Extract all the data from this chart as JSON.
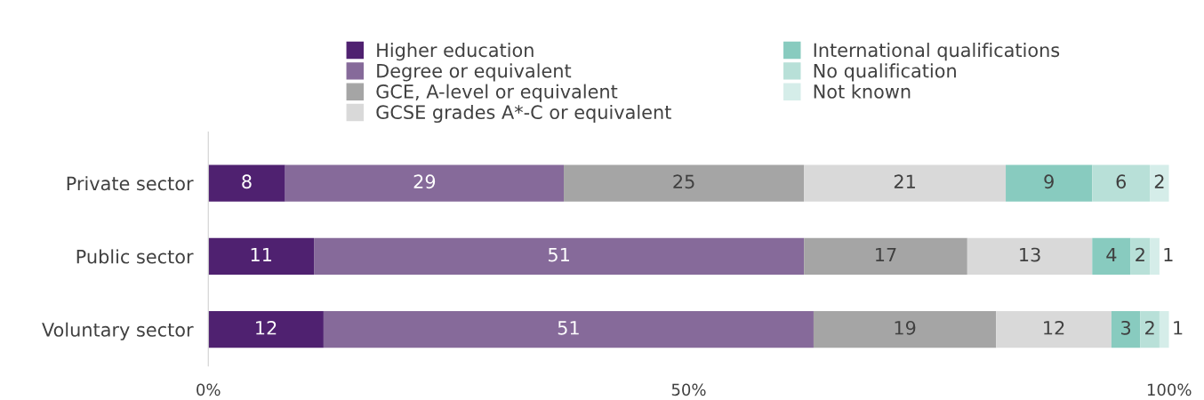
{
  "chart_data": {
    "type": "bar",
    "orientation": "horizontal",
    "stacked": true,
    "data_labels": true,
    "legend": "top",
    "grid": false,
    "categories": [
      "Private sector",
      "Public sector",
      "Voluntary sector"
    ],
    "xlim": [
      0,
      100
    ],
    "xticks": [
      {
        "value": 0,
        "label": "0%"
      },
      {
        "value": 50,
        "label": "50%"
      },
      {
        "value": 100,
        "label": "100%"
      }
    ],
    "series": [
      {
        "name": "Higher education",
        "color": "#4f2170",
        "values": [
          8,
          11,
          12
        ]
      },
      {
        "name": "Degree or equivalent",
        "color": "#866a9a",
        "values": [
          29,
          51,
          51
        ]
      },
      {
        "name": "GCE, A-level or equivalent",
        "color": "#a5a5a5",
        "values": [
          25,
          17,
          19
        ]
      },
      {
        "name": "GCSE grades A*-C or equivalent",
        "color": "#d9d9d9",
        "values": [
          21,
          13,
          12
        ]
      },
      {
        "name": "International qualifications",
        "color": "#88cbbf",
        "values": [
          9,
          4,
          3
        ]
      },
      {
        "name": "No qualification",
        "color": "#b8e0d8",
        "values": [
          6,
          2,
          2
        ]
      },
      {
        "name": "Not known",
        "color": "#d5ede9",
        "values": [
          2,
          1,
          1
        ]
      }
    ]
  }
}
